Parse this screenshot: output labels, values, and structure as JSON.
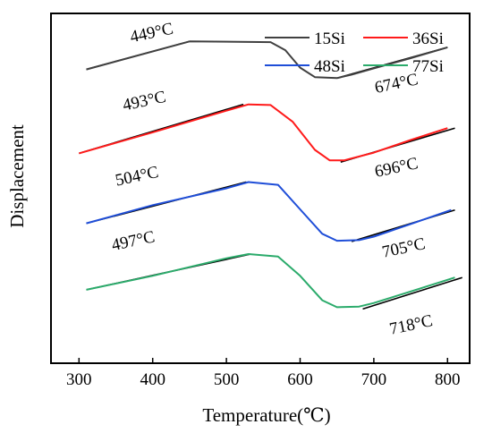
{
  "chart_data": {
    "type": "line",
    "xlabel": "Temperature(℃)",
    "ylabel": "Displacement",
    "xlim": [
      262,
      830
    ],
    "ylim": [
      0,
      1
    ],
    "x_ticks": [
      300,
      400,
      500,
      600,
      700,
      800
    ],
    "y_ticks": [],
    "grid": false,
    "legend_position": "top-right",
    "series": [
      {
        "name": "15Si",
        "color": "#404040",
        "x": [
          310,
          450,
          560,
          580,
          600,
          620,
          650,
          670,
          700,
          750,
          800
        ],
        "y": [
          0.84,
          0.92,
          0.918,
          0.895,
          0.845,
          0.818,
          0.815,
          0.825,
          0.843,
          0.872,
          0.903
        ]
      },
      {
        "name": "36Si",
        "color": "#ff1a1a",
        "x": [
          300,
          400,
          500,
          530,
          560,
          590,
          620,
          640,
          660,
          700,
          750,
          800
        ],
        "y": [
          0.6,
          0.66,
          0.722,
          0.74,
          0.738,
          0.69,
          0.61,
          0.58,
          0.58,
          0.602,
          0.638,
          0.672
        ]
      },
      {
        "name": "48Si",
        "color": "#1f4ed8",
        "x": [
          310,
          400,
          500,
          530,
          570,
          600,
          630,
          650,
          680,
          700,
          750,
          805
        ],
        "y": [
          0.4,
          0.452,
          0.5,
          0.518,
          0.51,
          0.44,
          0.37,
          0.35,
          0.352,
          0.362,
          0.398,
          0.438
        ]
      },
      {
        "name": "77Si",
        "color": "#2bab6b",
        "x": [
          310,
          400,
          500,
          530,
          570,
          600,
          630,
          650,
          680,
          700,
          750,
          810
        ],
        "y": [
          0.21,
          0.25,
          0.3,
          0.312,
          0.305,
          0.25,
          0.18,
          0.16,
          0.162,
          0.172,
          0.205,
          0.245
        ]
      }
    ],
    "tangents": [
      {
        "x": [
          310,
          450
        ],
        "y": [
          0.84,
          0.92
        ]
      },
      {
        "x": [
          650,
          800
        ],
        "y": [
          0.815,
          0.903
        ]
      },
      {
        "x": [
          300,
          523
        ],
        "y": [
          0.6,
          0.74
        ]
      },
      {
        "x": [
          655,
          810
        ],
        "y": [
          0.575,
          0.672
        ]
      },
      {
        "x": [
          310,
          527
        ],
        "y": [
          0.4,
          0.518
        ]
      },
      {
        "x": [
          670,
          810
        ],
        "y": [
          0.348,
          0.438
        ]
      },
      {
        "x": [
          310,
          533
        ],
        "y": [
          0.21,
          0.312
        ]
      },
      {
        "x": [
          685,
          820
        ],
        "y": [
          0.155,
          0.245
        ]
      }
    ],
    "annotations": [
      {
        "text": "449°C",
        "x": 400,
        "y": 0.93,
        "rotate": -12
      },
      {
        "text": "674°C",
        "x": 732,
        "y": 0.785,
        "rotate": -12
      },
      {
        "text": "493°C",
        "x": 390,
        "y": 0.735,
        "rotate": -12
      },
      {
        "text": "696°C",
        "x": 732,
        "y": 0.545,
        "rotate": -12
      },
      {
        "text": "504°C",
        "x": 380,
        "y": 0.52,
        "rotate": -12
      },
      {
        "text": "705°C",
        "x": 742,
        "y": 0.315,
        "rotate": -12
      },
      {
        "text": "497°C",
        "x": 375,
        "y": 0.335,
        "rotate": -12
      },
      {
        "text": "718°C",
        "x": 752,
        "y": 0.095,
        "rotate": -12
      }
    ]
  }
}
